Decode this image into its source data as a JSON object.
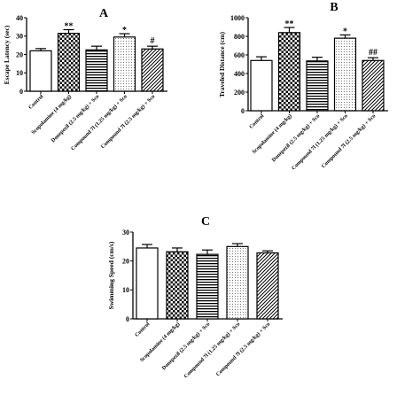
{
  "patterns": [
    "open",
    "check",
    "hstripe",
    "dots",
    "diag"
  ],
  "chart_data": [
    {
      "type": "bar",
      "panel": "A",
      "ylabel": "Escape Latency (sec)",
      "ylim": [
        0,
        40
      ],
      "yticks": [
        0,
        10,
        20,
        30,
        40
      ],
      "categories": [
        "Control",
        "Scopolamine (4 mg/kg)",
        "Donepezil (2.5 mg/kg) + Sco",
        "Compound 7l (1.25 mg/kg) + Sco",
        "Compound 7l (2.5 mg/kg) + Sco"
      ],
      "values": [
        22,
        31.5,
        22.5,
        29.5,
        23
      ],
      "errors": [
        1.2,
        2,
        2,
        1.8,
        1.5
      ],
      "annotations": [
        "",
        "**",
        "",
        "*",
        "#"
      ]
    },
    {
      "type": "bar",
      "panel": "B",
      "ylabel": "Traveled Distance (cm)",
      "ylim": [
        0,
        1000
      ],
      "yticks": [
        0,
        200,
        400,
        600,
        800,
        1000
      ],
      "categories": [
        "Control",
        "Scopolamine (4 mg/kg)",
        "Donepezil (2.5 mg/kg) + Sco",
        "Compound 7l (1.25 mg/kg) + Sco",
        "Compound 7l (2.5 mg/kg) + Sco"
      ],
      "values": [
        540,
        840,
        535,
        780,
        540
      ],
      "errors": [
        40,
        55,
        40,
        35,
        30
      ],
      "annotations": [
        "",
        "**",
        "",
        "*",
        "##"
      ]
    },
    {
      "type": "bar",
      "panel": "C",
      "ylabel": "Swimming Speed (cm/s)",
      "ylim": [
        0,
        30
      ],
      "yticks": [
        0,
        10,
        20,
        30
      ],
      "categories": [
        "Control",
        "Scopolamine (4 mg/kg)",
        "Donepezil (2.5 mg/kg) + Sco",
        "Compound 7l (1.25 mg/kg) + Sco",
        "Compound 7l (2.5 mg/kg) + Sco"
      ],
      "values": [
        24.5,
        23.2,
        22.3,
        25,
        22.8
      ],
      "errors": [
        1.2,
        1.3,
        1.5,
        1,
        0.7
      ],
      "annotations": [
        "",
        "",
        "",
        "",
        ""
      ]
    }
  ]
}
